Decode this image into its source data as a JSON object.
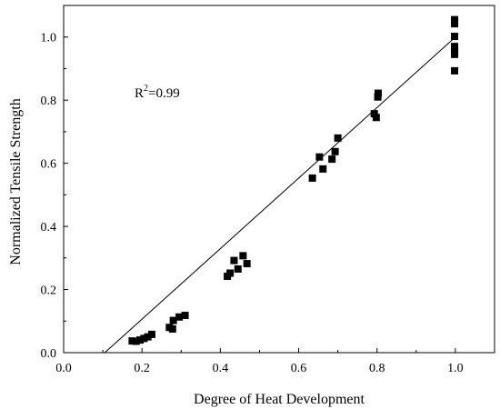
{
  "chart_data": {
    "type": "scatter",
    "title": "",
    "xlabel": "Degree of Heat Development",
    "ylabel": "Normalized Tensile Strength",
    "xlim": [
      0.0,
      1.1
    ],
    "ylim": [
      0.0,
      1.1
    ],
    "x_ticks": [
      "0.0",
      "0.2",
      "0.4",
      "0.6",
      "0.8",
      "1.0"
    ],
    "y_ticks": [
      "0.0",
      "0.2",
      "0.4",
      "0.6",
      "0.8",
      "1.0"
    ],
    "grid": false,
    "legend": "none",
    "annotation": {
      "base": "R",
      "superscript": "2",
      "text": "=0.99"
    },
    "series": [
      {
        "marker": "square",
        "color": "#000000",
        "points": [
          [
            0.175,
            0.037
          ],
          [
            0.185,
            0.036
          ],
          [
            0.195,
            0.04
          ],
          [
            0.205,
            0.045
          ],
          [
            0.215,
            0.05
          ],
          [
            0.225,
            0.058
          ],
          [
            0.27,
            0.08
          ],
          [
            0.278,
            0.075
          ],
          [
            0.28,
            0.102
          ],
          [
            0.295,
            0.113
          ],
          [
            0.31,
            0.118
          ],
          [
            0.418,
            0.242
          ],
          [
            0.425,
            0.252
          ],
          [
            0.435,
            0.292
          ],
          [
            0.445,
            0.265
          ],
          [
            0.458,
            0.307
          ],
          [
            0.468,
            0.282
          ],
          [
            0.635,
            0.553
          ],
          [
            0.653,
            0.62
          ],
          [
            0.662,
            0.582
          ],
          [
            0.685,
            0.613
          ],
          [
            0.693,
            0.637
          ],
          [
            0.7,
            0.68
          ],
          [
            0.793,
            0.757
          ],
          [
            0.798,
            0.745
          ],
          [
            0.802,
            0.81
          ],
          [
            0.803,
            0.822
          ],
          [
            0.998,
            1.055
          ],
          [
            0.998,
            1.042
          ],
          [
            0.998,
            1.002
          ],
          [
            0.998,
            0.97
          ],
          [
            0.998,
            0.955
          ],
          [
            0.998,
            0.945
          ],
          [
            0.998,
            0.893
          ]
        ]
      }
    ],
    "fit_line": {
      "color": "#000000",
      "points": [
        [
          0.105,
          0.0
        ],
        [
          1.0,
          1.0
        ]
      ]
    }
  }
}
